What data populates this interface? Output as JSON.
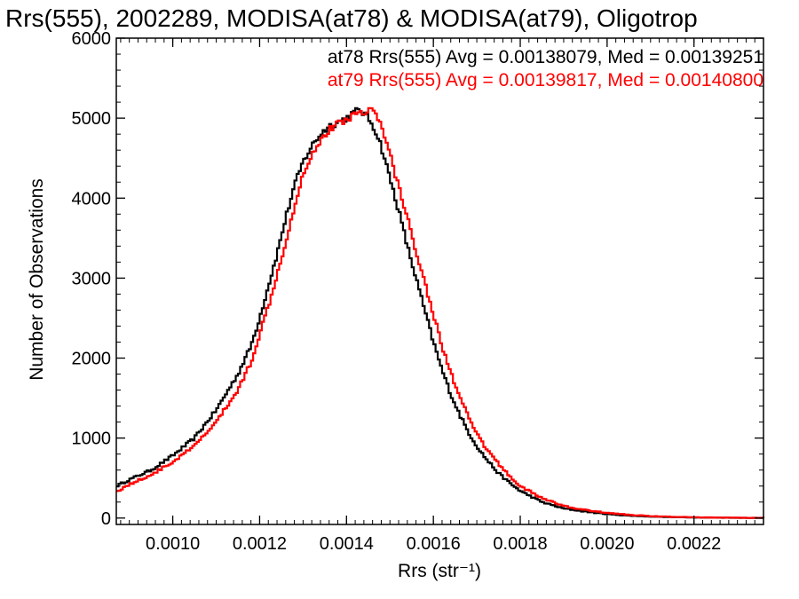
{
  "chart_data": {
    "type": "line",
    "title": "Rrs(555), 2002289, MODISA(at78) & MODISA(at79), Oligotrop",
    "xlabel": "Rrs (str⁻¹)",
    "ylabel": "Number of Observations",
    "xlim": [
      0.00087,
      0.00236
    ],
    "ylim": [
      -80,
      6000
    ],
    "x_ticks": [
      0.001,
      0.0012,
      0.0014,
      0.0016,
      0.0018,
      0.002,
      0.0022
    ],
    "x_tick_labels": [
      "0.0010",
      "0.0012",
      "0.0014",
      "0.0016",
      "0.0018",
      "0.0020",
      "0.0022"
    ],
    "y_ticks": [
      0,
      1000,
      2000,
      3000,
      4000,
      5000,
      6000
    ],
    "y_tick_labels": [
      "0",
      "1000",
      "2000",
      "3000",
      "4000",
      "5000",
      "6000"
    ],
    "grid": false,
    "legend_position": "top-right",
    "series": [
      {
        "name": "at78",
        "color": "#000000",
        "stats_label": "at78 Rrs(555) Avg = 0.00138079, Med = 0.00139251",
        "x": [
          0.00087,
          0.0009,
          0.00095,
          0.001,
          0.00105,
          0.0011,
          0.00115,
          0.00118,
          0.0012,
          0.00122,
          0.00124,
          0.00126,
          0.00128,
          0.0013,
          0.00132,
          0.00134,
          0.00136,
          0.00138,
          0.0014,
          0.00142,
          0.00143,
          0.00144,
          0.00145,
          0.00146,
          0.00147,
          0.00148,
          0.0015,
          0.00152,
          0.00154,
          0.00156,
          0.00158,
          0.0016,
          0.00162,
          0.00164,
          0.00166,
          0.00168,
          0.0017,
          0.00172,
          0.00175,
          0.00178,
          0.0018,
          0.00185,
          0.0019,
          0.00195,
          0.002,
          0.00205,
          0.0021,
          0.00215,
          0.0022,
          0.00225,
          0.0023,
          0.00236
        ],
        "y": [
          400,
          480,
          600,
          780,
          1000,
          1350,
          1800,
          2150,
          2500,
          2900,
          3300,
          3750,
          4150,
          4450,
          4650,
          4800,
          4900,
          4950,
          5000,
          5080,
          5100,
          5060,
          5000,
          4920,
          4800,
          4650,
          4250,
          3850,
          3400,
          3000,
          2600,
          2200,
          1850,
          1550,
          1300,
          1080,
          900,
          750,
          560,
          420,
          340,
          200,
          120,
          80,
          50,
          30,
          20,
          12,
          8,
          5,
          3,
          2
        ]
      },
      {
        "name": "at79",
        "color": "#ff0000",
        "stats_label": "at79 Rrs(555) Avg = 0.00139817, Med = 0.00140800",
        "x": [
          0.00087,
          0.0009,
          0.00095,
          0.001,
          0.00105,
          0.0011,
          0.00115,
          0.00118,
          0.0012,
          0.00122,
          0.00124,
          0.00126,
          0.00128,
          0.0013,
          0.00132,
          0.00134,
          0.00136,
          0.00138,
          0.0014,
          0.00142,
          0.00143,
          0.00144,
          0.00145,
          0.00146,
          0.00147,
          0.00148,
          0.0015,
          0.00152,
          0.00154,
          0.00156,
          0.00158,
          0.0016,
          0.00162,
          0.00164,
          0.00166,
          0.00168,
          0.0017,
          0.00172,
          0.00175,
          0.00178,
          0.0018,
          0.00185,
          0.0019,
          0.00195,
          0.002,
          0.00205,
          0.0021,
          0.00215,
          0.0022,
          0.00225,
          0.0023,
          0.00236
        ],
        "y": [
          330,
          420,
          540,
          700,
          900,
          1200,
          1600,
          1950,
          2300,
          2650,
          3050,
          3450,
          3900,
          4300,
          4550,
          4720,
          4850,
          4930,
          4990,
          5050,
          5070,
          5080,
          5120,
          5100,
          5020,
          4900,
          4550,
          4150,
          3750,
          3350,
          2950,
          2550,
          2150,
          1820,
          1520,
          1270,
          1050,
          880,
          680,
          500,
          400,
          250,
          150,
          100,
          65,
          40,
          25,
          15,
          10,
          6,
          4,
          2
        ]
      }
    ]
  }
}
